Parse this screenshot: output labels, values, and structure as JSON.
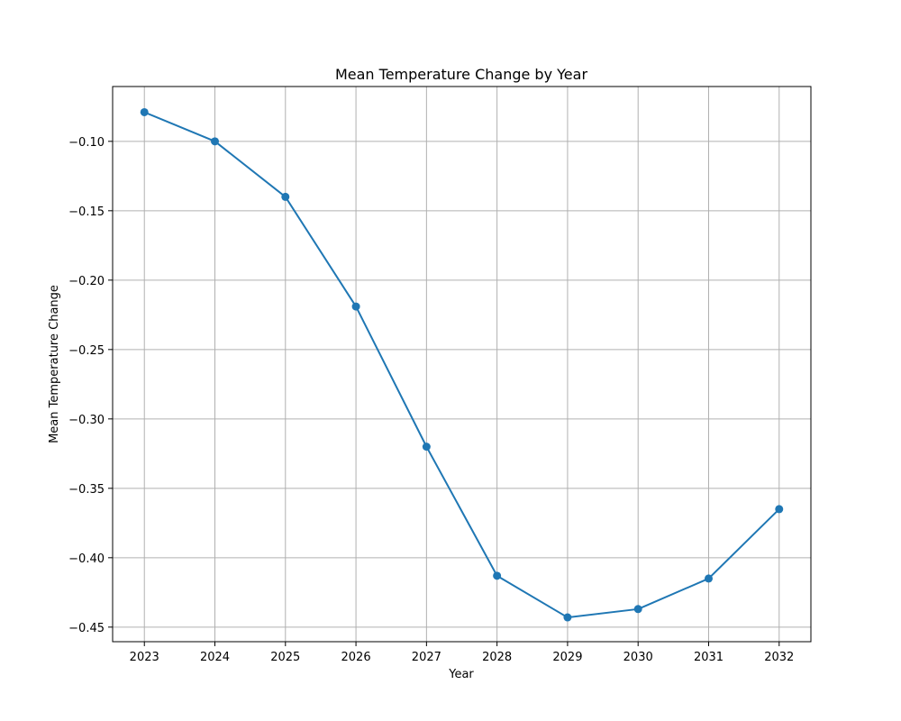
{
  "chart_data": {
    "type": "line",
    "title": "Mean Temperature Change by Year",
    "xlabel": "Year",
    "ylabel": "Mean Temperature Change",
    "x": [
      2023,
      2024,
      2025,
      2026,
      2027,
      2028,
      2029,
      2030,
      2031,
      2032
    ],
    "series": [
      {
        "values": [
          -0.079,
          -0.1,
          -0.14,
          -0.219,
          -0.32,
          -0.413,
          -0.443,
          -0.437,
          -0.415,
          -0.365
        ],
        "color": "#1f77b4",
        "marker": "circle"
      }
    ],
    "xlim": [
      2022.55,
      2032.45
    ],
    "ylim": [
      -0.4605,
      -0.0605
    ],
    "xticks": [
      2023,
      2024,
      2025,
      2026,
      2027,
      2028,
      2029,
      2030,
      2031,
      2032
    ],
    "xtick_labels": [
      "2023",
      "2024",
      "2025",
      "2026",
      "2027",
      "2028",
      "2029",
      "2030",
      "2031",
      "2032"
    ],
    "yticks": [
      -0.1,
      -0.15,
      -0.2,
      -0.25,
      -0.3,
      -0.35,
      -0.4,
      -0.45
    ],
    "ytick_labels": [
      "−0.10",
      "−0.15",
      "−0.20",
      "−0.25",
      "−0.30",
      "−0.35",
      "−0.40",
      "−0.45"
    ],
    "grid": true,
    "grid_color": "#b0b0b0",
    "axis_color": "#000000"
  }
}
